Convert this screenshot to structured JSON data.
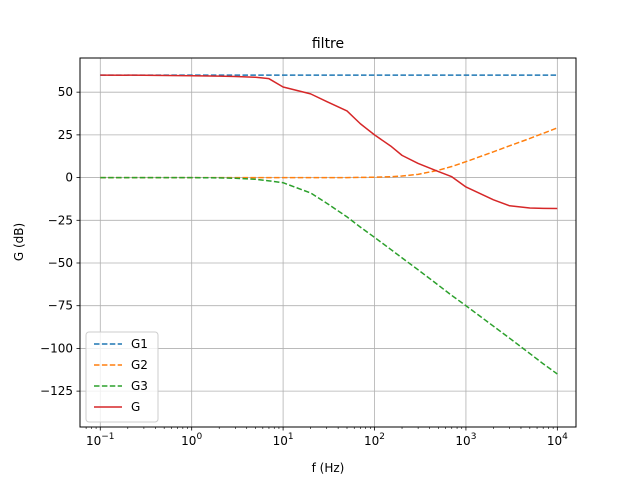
{
  "chart_data": {
    "type": "line",
    "title": "filtre",
    "xlabel": "f (Hz)",
    "ylabel": "G (dB)",
    "xscale": "log",
    "xlim": [
      0.06,
      16000
    ],
    "ylim": [
      -146,
      70
    ],
    "grid": true,
    "legend_position": "lower-left",
    "x_ticks": [
      {
        "value": 0.1,
        "base": "10",
        "exp": "−1"
      },
      {
        "value": 1,
        "base": "10",
        "exp": "0"
      },
      {
        "value": 10,
        "base": "10",
        "exp": "1"
      },
      {
        "value": 100,
        "base": "10",
        "exp": "2"
      },
      {
        "value": 1000,
        "base": "10",
        "exp": "3"
      },
      {
        "value": 10000,
        "base": "10",
        "exp": "4"
      }
    ],
    "y_ticks": [
      {
        "value": 50,
        "label": "50"
      },
      {
        "value": 25,
        "label": "25"
      },
      {
        "value": 0,
        "label": "0"
      },
      {
        "value": -25,
        "label": "−25"
      },
      {
        "value": -50,
        "label": "−50"
      },
      {
        "value": -75,
        "label": "−75"
      },
      {
        "value": -100,
        "label": "−100"
      },
      {
        "value": -125,
        "label": "−125"
      }
    ],
    "x": [
      0.1,
      0.3,
      1,
      2,
      3,
      5,
      7,
      10,
      20,
      30,
      50,
      70,
      100,
      150,
      200,
      300,
      500,
      700,
      1000,
      2000,
      3000,
      5000,
      7000,
      10000
    ],
    "series": [
      {
        "name": "G1",
        "color": "#1f77b4",
        "dash": "dashed",
        "values": [
          60,
          60,
          60,
          60,
          60,
          60,
          60,
          60,
          60,
          60,
          60,
          60,
          60,
          60,
          60,
          60,
          60,
          60,
          60,
          60,
          60,
          60,
          60,
          60
        ]
      },
      {
        "name": "G2",
        "color": "#ff7f0e",
        "dash": "dashed",
        "values": [
          0,
          0,
          0,
          0,
          0,
          0,
          0,
          0,
          0,
          0,
          0,
          0.1,
          0.2,
          0.5,
          0.9,
          1.9,
          4.3,
          6.5,
          9.3,
          15.1,
          18.6,
          22.9,
          25.9,
          29.1
        ]
      },
      {
        "name": "G3",
        "color": "#2ca02c",
        "dash": "dashed",
        "values": [
          0,
          0,
          -0.04,
          -0.17,
          -0.4,
          -1.0,
          -1.9,
          -3.0,
          -9.0,
          -15.0,
          -23.0,
          -29.0,
          -35.0,
          -42.0,
          -47.0,
          -54.0,
          -63.0,
          -69.0,
          -75.0,
          -87.0,
          -94.0,
          -103.0,
          -109.0,
          -115.0
        ]
      },
      {
        "name": "G",
        "color": "#d62728",
        "dash": "solid",
        "values": [
          60,
          59.9,
          59.6,
          59.4,
          59.2,
          58.7,
          57.9,
          53.0,
          49.0,
          44.5,
          39.0,
          31.5,
          25.0,
          18.5,
          13.0,
          8.3,
          3.5,
          0.5,
          -5.5,
          -13.0,
          -16.5,
          -17.8,
          -18.0,
          -18.1
        ]
      }
    ]
  }
}
